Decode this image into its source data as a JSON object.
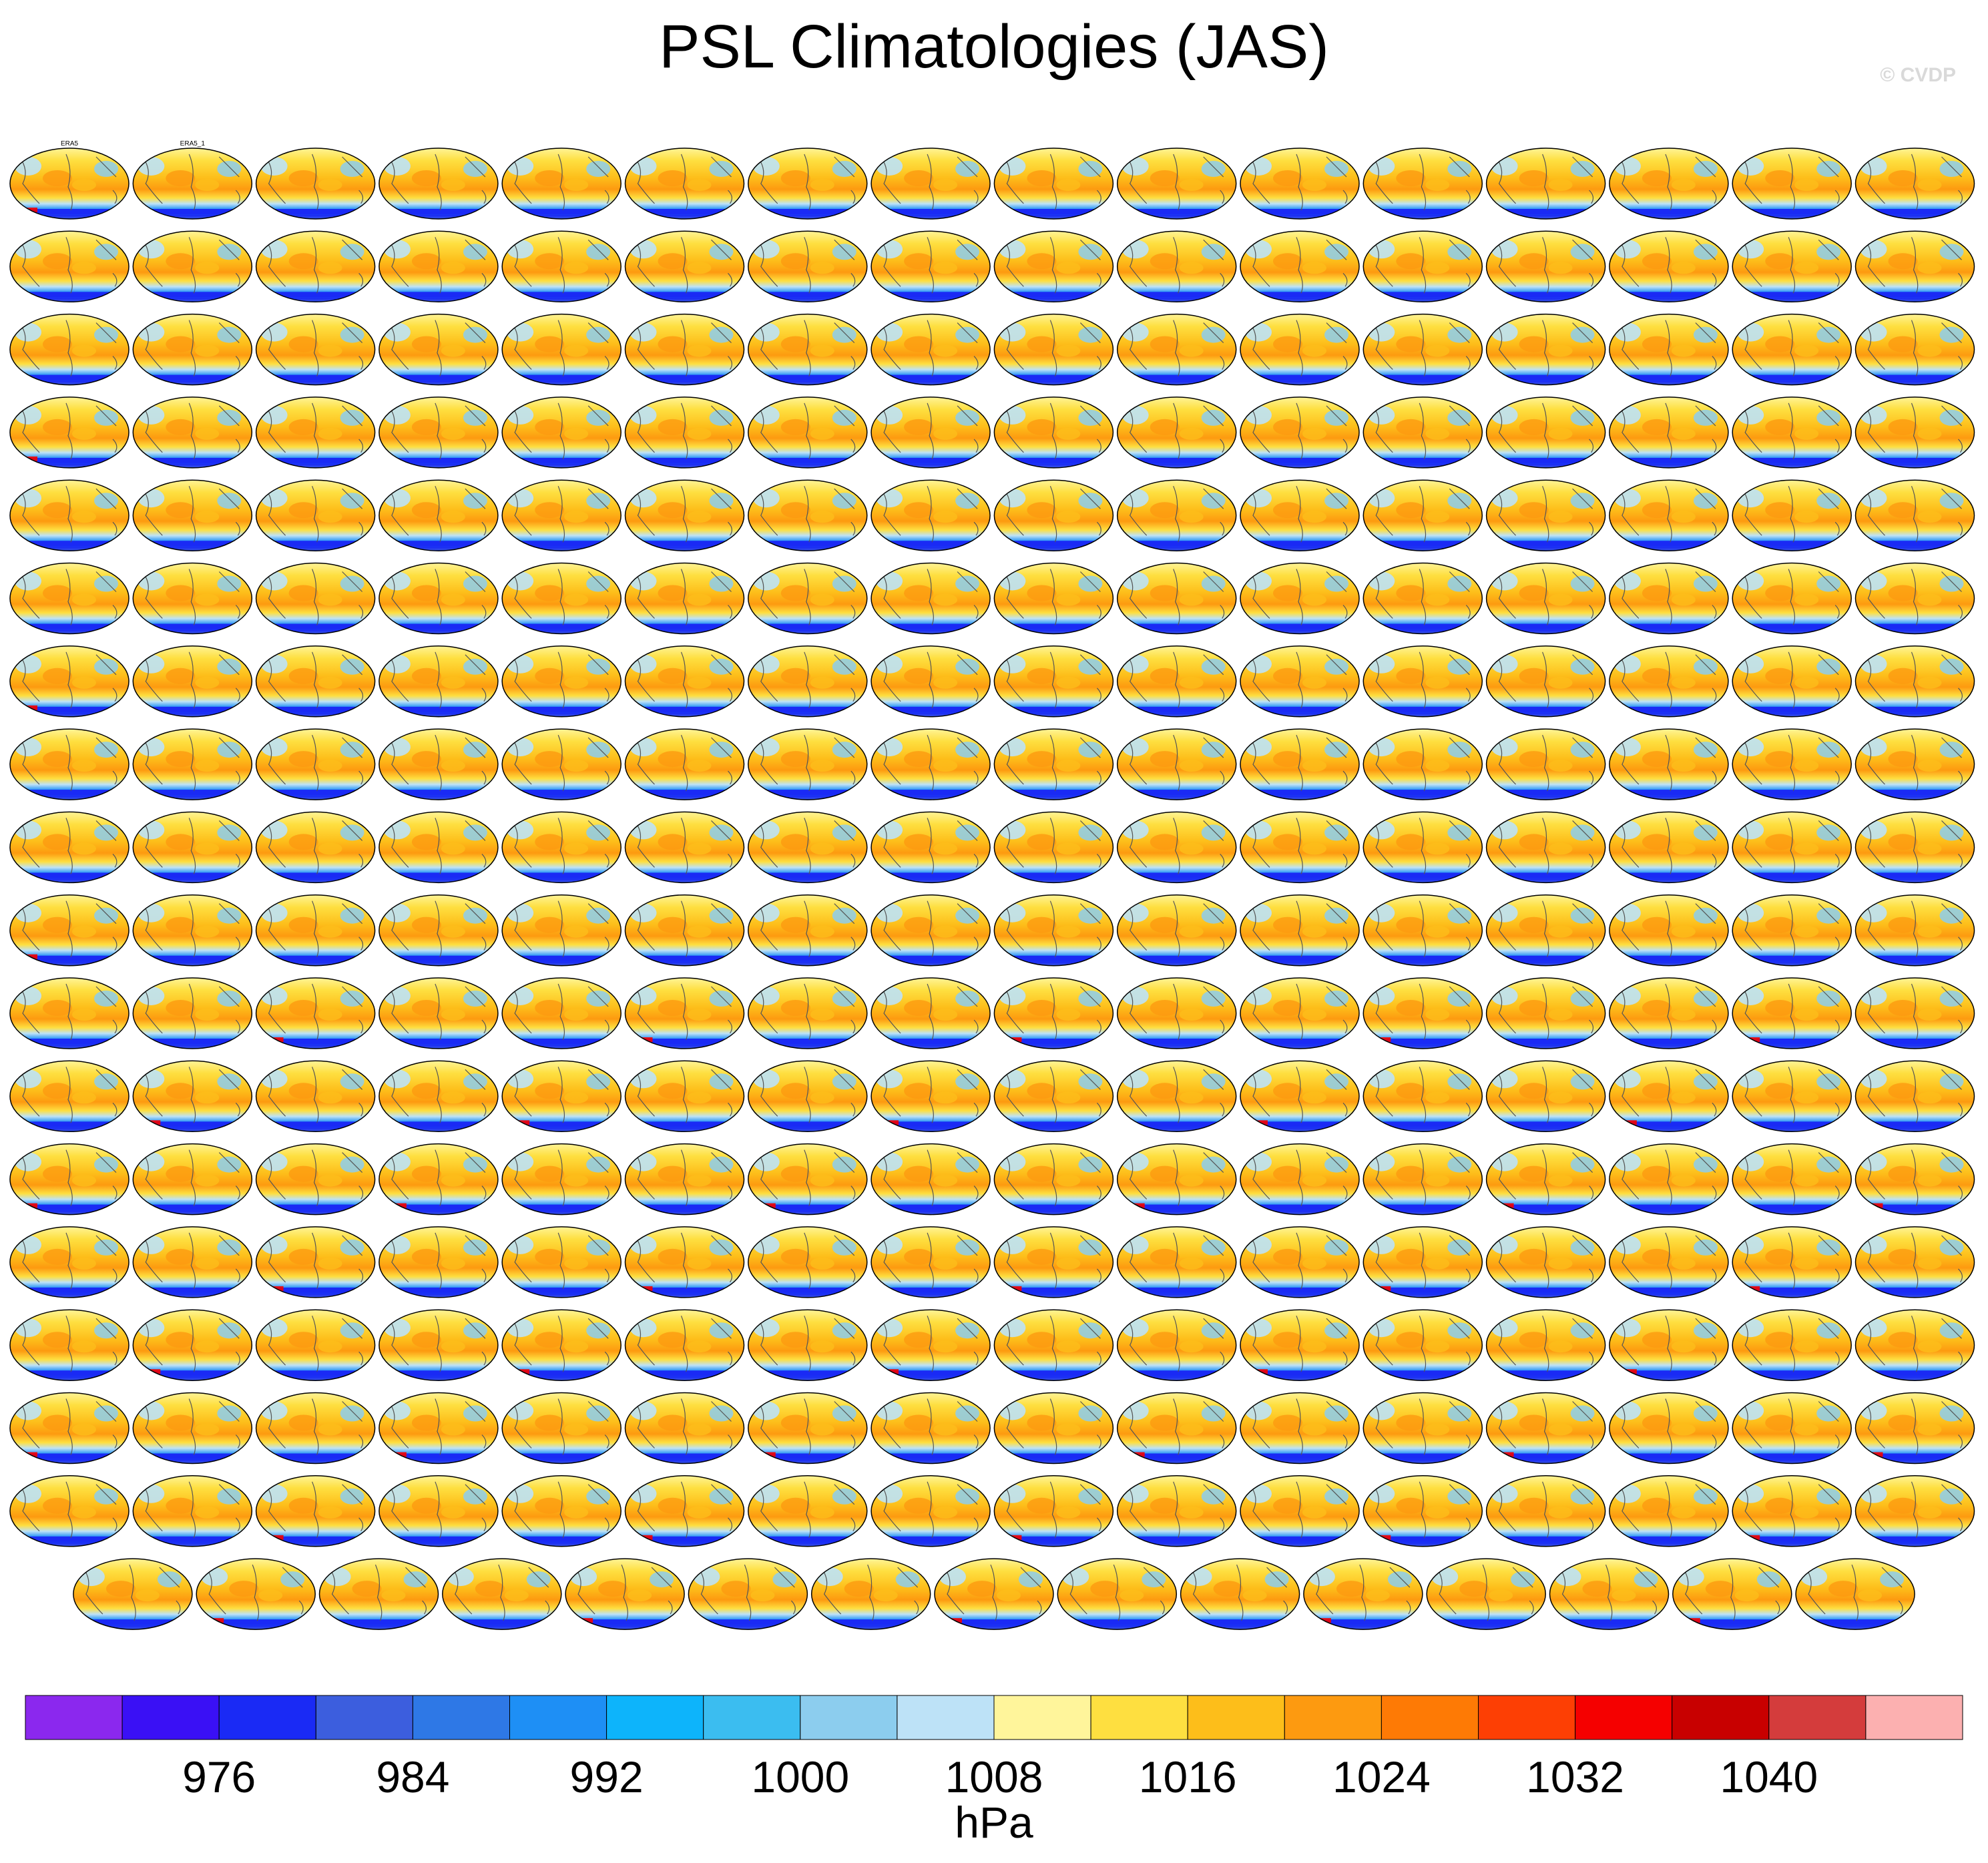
{
  "title": "PSL Climatologies (JAS)",
  "watermark": "© CVDP",
  "colorbar": {
    "units": "hPa",
    "tick_labels": [
      "976",
      "984",
      "992",
      "1000",
      "1008",
      "1016",
      "1024",
      "1032",
      "1040"
    ],
    "colors": [
      "#8b28ee",
      "#3a10f5",
      "#1a2af5",
      "#3c5ede",
      "#2e78e6",
      "#1e8ff5",
      "#0db4fb",
      "#3bbdf0",
      "#8ccdee",
      "#bde2f7",
      "#fff59b",
      "#fedf40",
      "#fdbe1a",
      "#fd9a10",
      "#fe7a05",
      "#fd3f04",
      "#f50000",
      "#c80000",
      "#d43c3c",
      "#fcb0b0"
    ]
  },
  "chart_data": {
    "type": "heatmap",
    "title": "PSL Climatologies (JAS)",
    "units": "hPa",
    "panel_grid": {
      "columns": 16,
      "full_rows": 17,
      "last_row_panels": 15,
      "total_panels": 287
    },
    "color_levels": [
      972,
      976,
      980,
      984,
      988,
      992,
      996,
      1000,
      1004,
      1008,
      1012,
      1016,
      1020,
      1024,
      1028,
      1032,
      1036,
      1040,
      1044
    ],
    "first_panel_titles": [
      "ERA5",
      "ERA5_1"
    ]
  }
}
